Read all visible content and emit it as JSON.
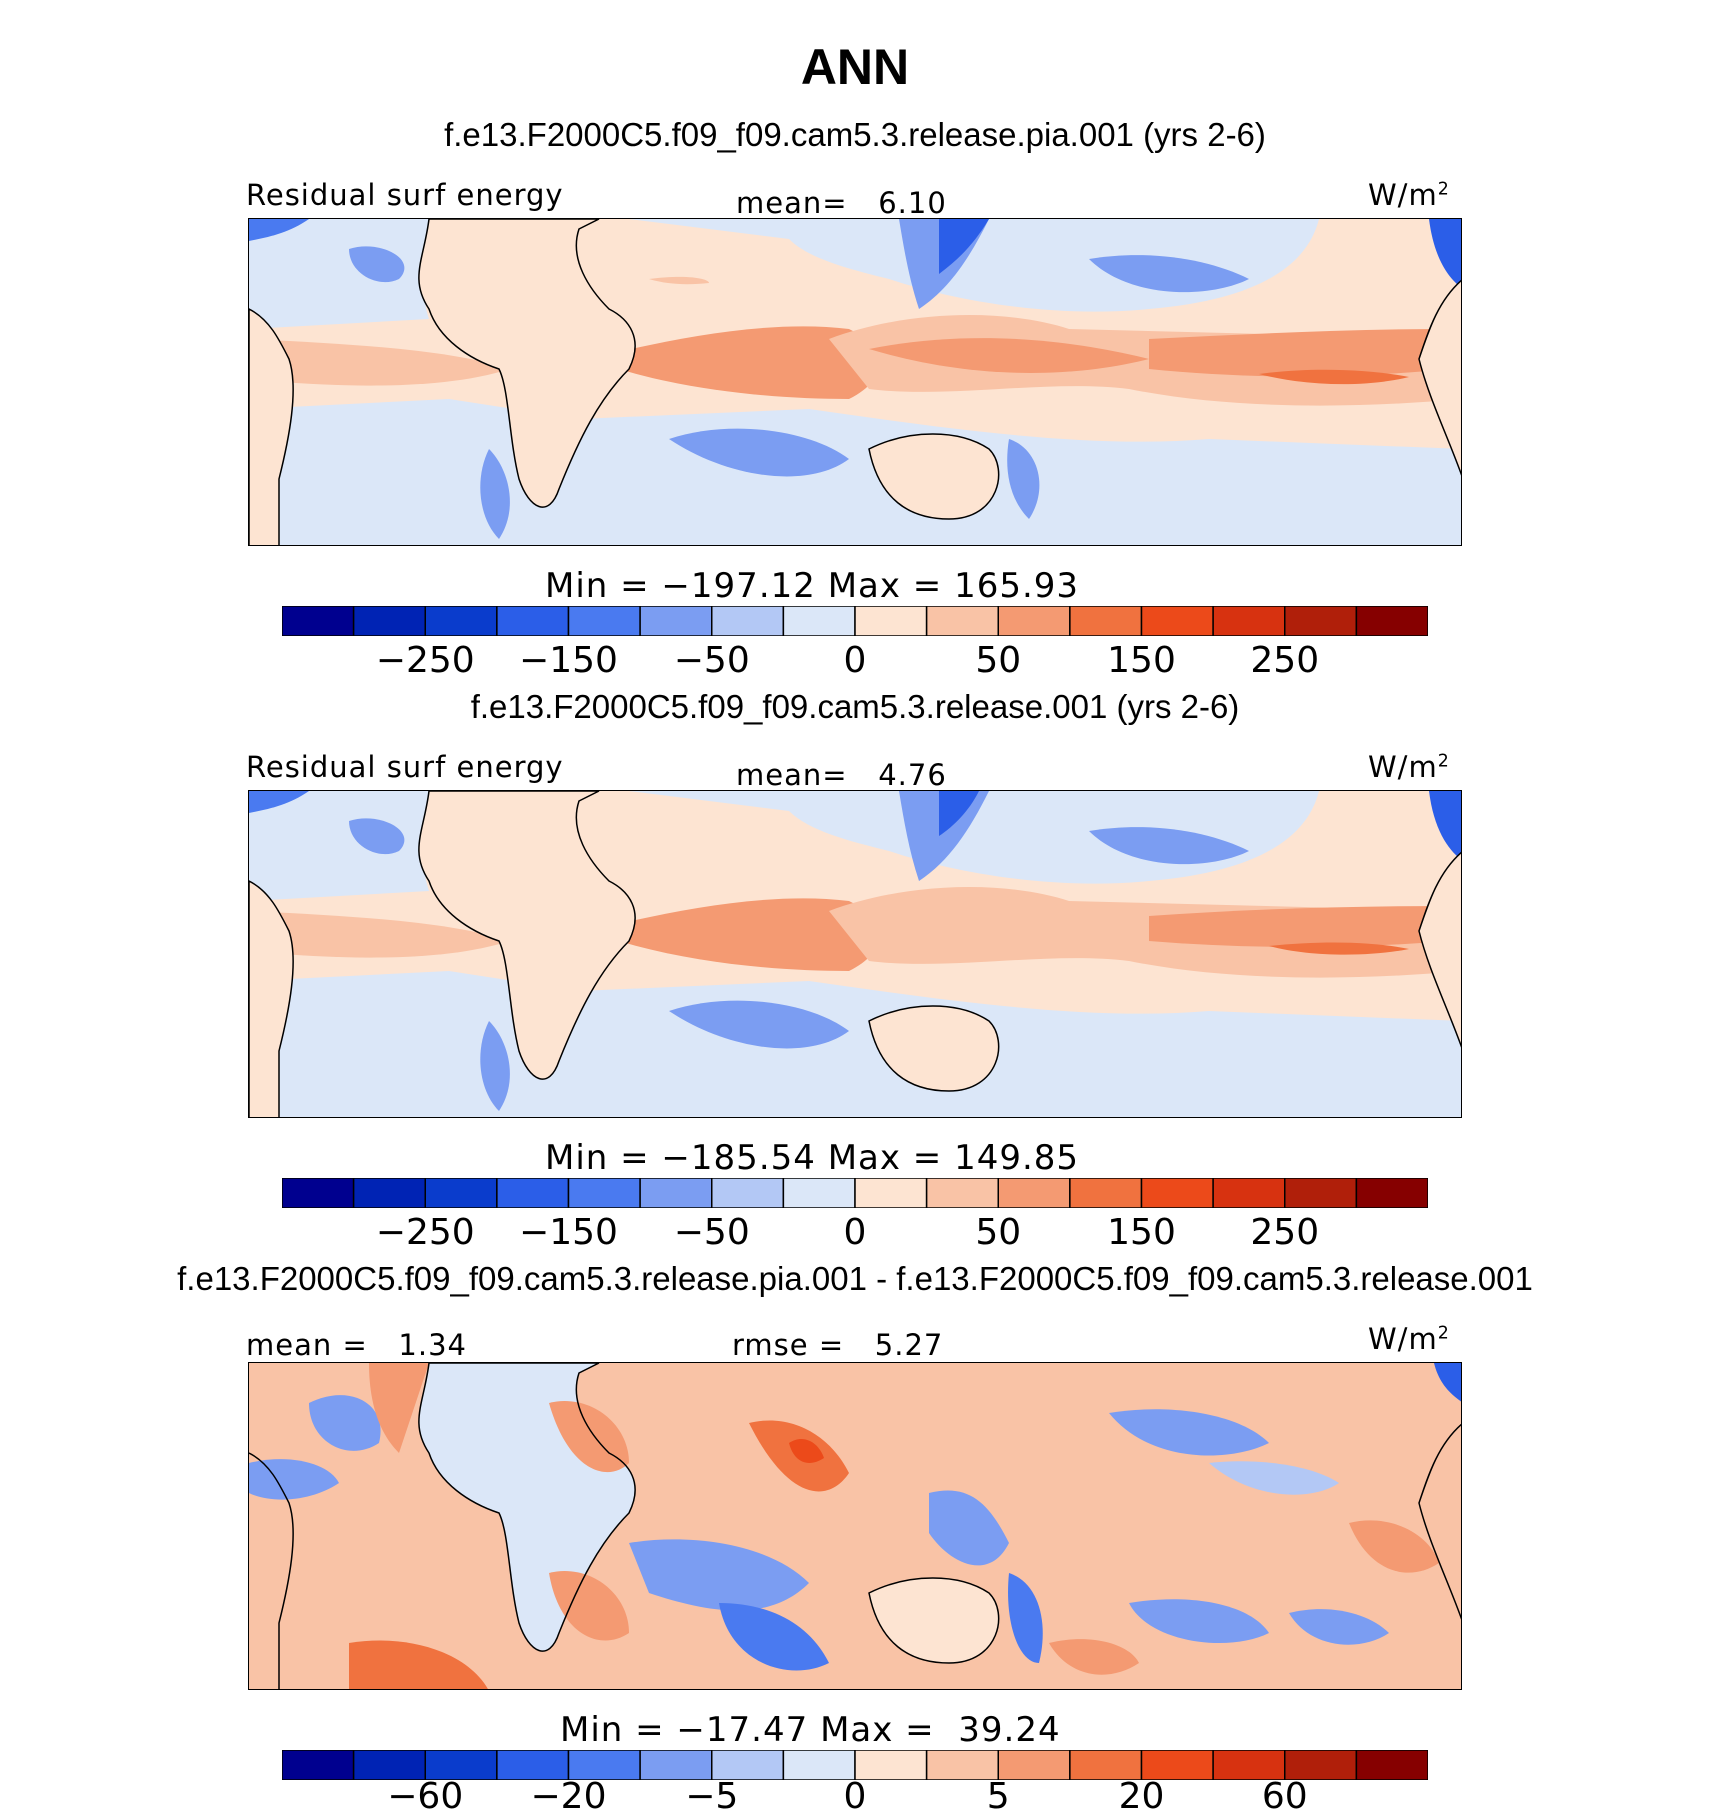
{
  "title": "ANN",
  "colors": [
    "#00008f",
    "#0023b4",
    "#0a3ccc",
    "#2b5ee8",
    "#4a7af0",
    "#7b9df2",
    "#b3c8f5",
    "#dbe7f8",
    "#fde4d2",
    "#f9c3a6",
    "#f49a72",
    "#f0723f",
    "#ec4a1a",
    "#d73210",
    "#b01f0a",
    "#860000"
  ],
  "panels": [
    {
      "case": "f.e13.F2000C5.f09_f09.cam5.3.release.pia.001 (yrs 2-6)",
      "left_label": "Residual surf energy",
      "center_label": "mean=   6.10",
      "units": "W/m",
      "units_sup": "2",
      "minmax": "Min = −197.12 Max = 165.93",
      "ticks": [
        "−250",
        "−150",
        "−50",
        "0",
        "50",
        "150",
        "250"
      ]
    },
    {
      "case": "f.e13.F2000C5.f09_f09.cam5.3.release.001 (yrs 2-6)",
      "left_label": "Residual surf energy",
      "center_label": "mean=   4.76",
      "units": "W/m",
      "units_sup": "2",
      "minmax": "Min = −185.54 Max = 149.85",
      "ticks": [
        "−250",
        "−150",
        "−50",
        "0",
        "50",
        "150",
        "250"
      ]
    },
    {
      "case": "f.e13.F2000C5.f09_f09.cam5.3.release.pia.001 - f.e13.F2000C5.f09_f09.cam5.3.release.001",
      "left_label": "mean =   1.34",
      "center_label": "rmse =   5.27",
      "units": "W/m",
      "units_sup": "2",
      "minmax": "Min = −17.47 Max =  39.24",
      "ticks": [
        "−60",
        "−20",
        "−5",
        "0",
        "5",
        "20",
        "60"
      ]
    }
  ],
  "chart_data": [
    {
      "type": "heatmap",
      "title": "f.e13.F2000C5.f09_f09.cam5.3.release.pia.001 (yrs 2-6)",
      "variable": "Residual surf energy",
      "units": "W/m2",
      "mean": 6.1,
      "min": -197.12,
      "max": 165.93,
      "colorbar_tick_labels": [
        -250,
        -150,
        -50,
        0,
        50,
        150,
        250
      ]
    },
    {
      "type": "heatmap",
      "title": "f.e13.F2000C5.f09_f09.cam5.3.release.001 (yrs 2-6)",
      "variable": "Residual surf energy",
      "units": "W/m2",
      "mean": 4.76,
      "min": -185.54,
      "max": 149.85,
      "colorbar_tick_labels": [
        -250,
        -150,
        -50,
        0,
        50,
        150,
        250
      ]
    },
    {
      "type": "heatmap",
      "title": "f.e13.F2000C5.f09_f09.cam5.3.release.pia.001 - f.e13.F2000C5.f09_f09.cam5.3.release.001",
      "units": "W/m2",
      "mean": 1.34,
      "rmse": 5.27,
      "min": -17.47,
      "max": 39.24,
      "colorbar_tick_labels": [
        -60,
        -20,
        -5,
        0,
        5,
        20,
        60
      ]
    }
  ]
}
